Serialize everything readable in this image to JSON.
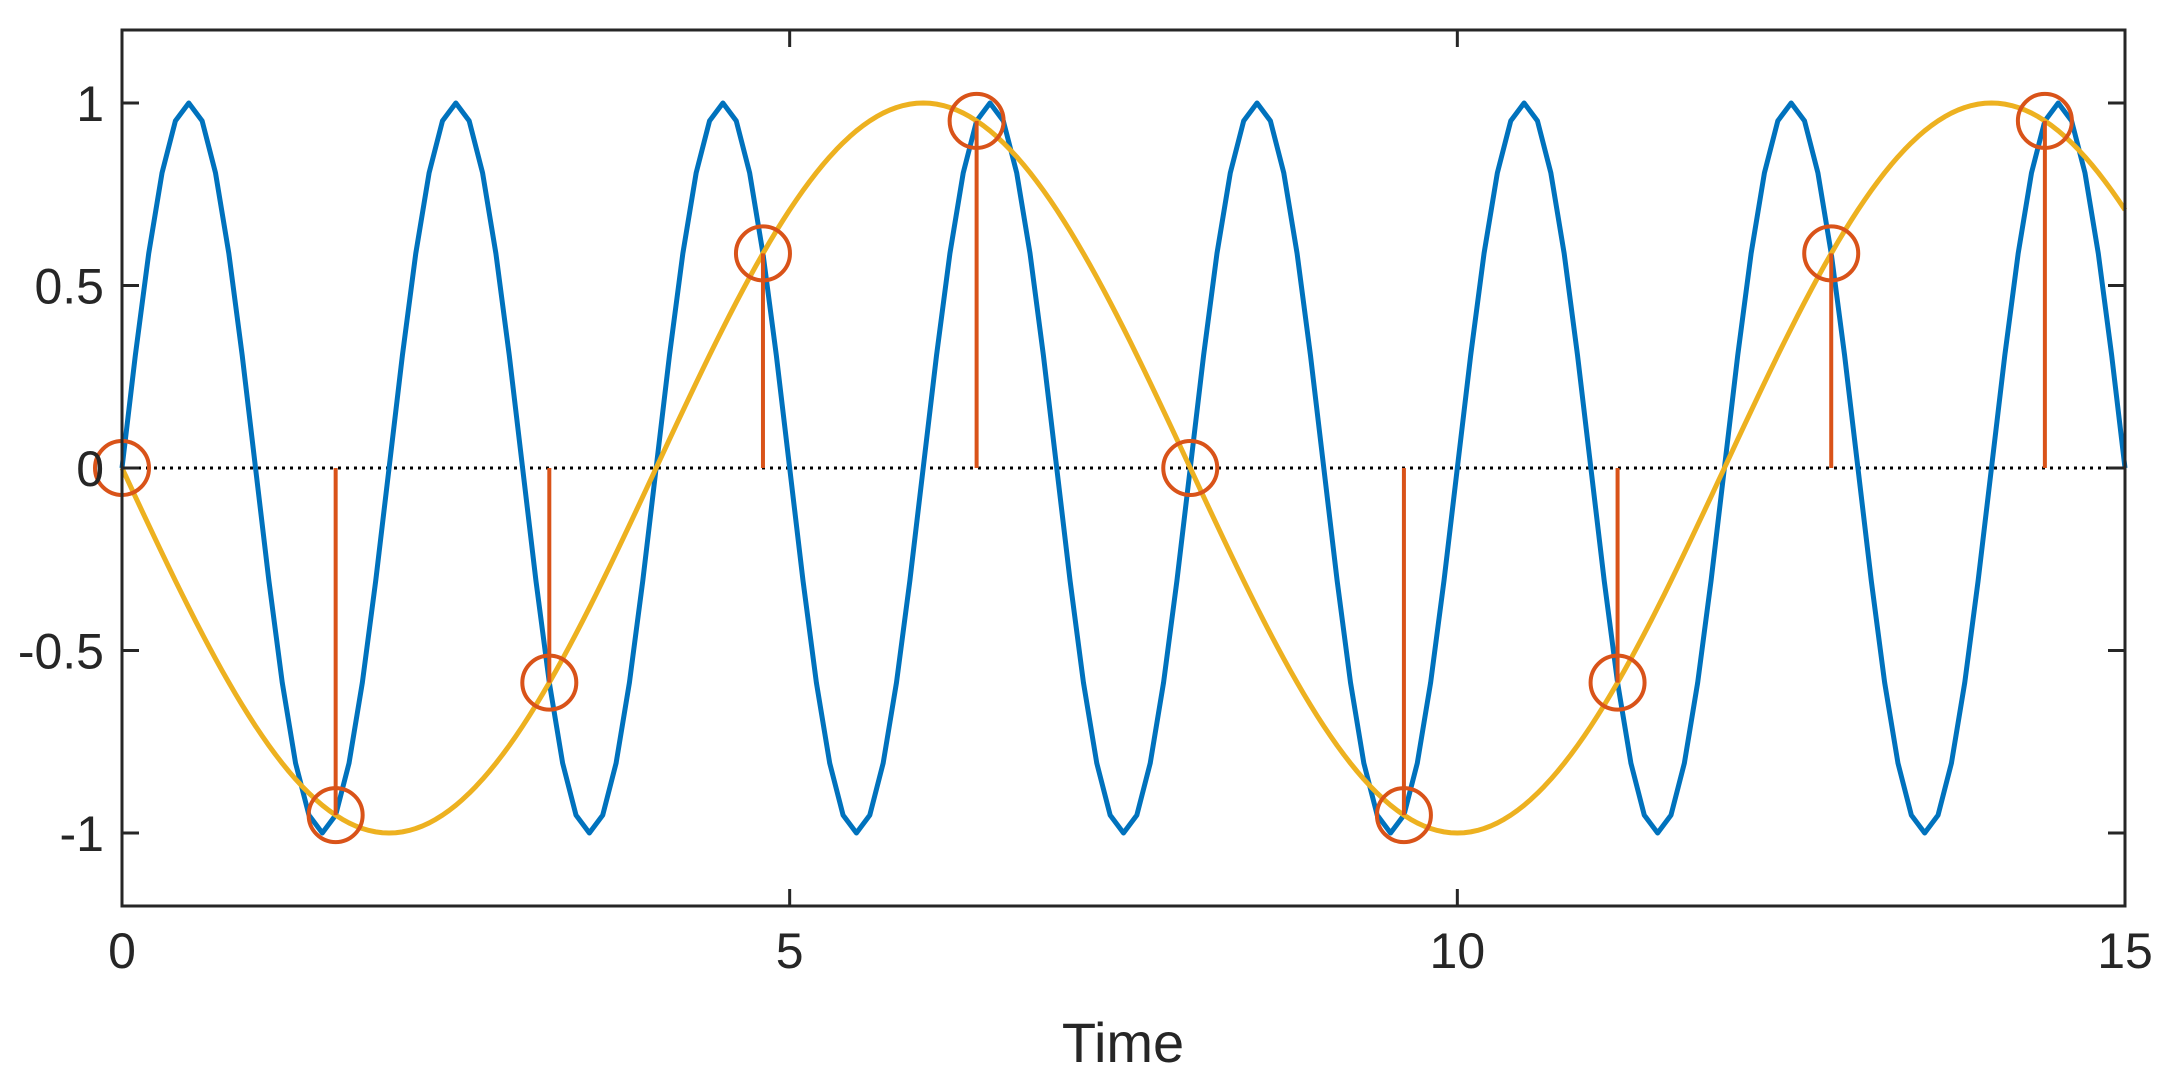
{
  "chart_data": {
    "type": "line",
    "title": "",
    "xlabel": "Time",
    "ylabel": "",
    "xlim": [
      0,
      15
    ],
    "ylim": [
      -1.2,
      1.2
    ],
    "xticks": [
      0,
      5,
      10,
      15
    ],
    "xtick_labels": [
      "0",
      "5",
      "10",
      "15"
    ],
    "yticks": [
      -1,
      -0.5,
      0,
      0.5,
      1
    ],
    "ytick_labels": [
      "-1",
      "-0.5",
      "0",
      "0.5",
      "1"
    ],
    "grid": false,
    "series": [
      {
        "kind": "line",
        "color": "#0072BD",
        "x_start": 0,
        "x_end": 15,
        "x_step": 0.1,
        "function": "sin(2*pi*0.5*t)",
        "frequency": 0.5
      },
      {
        "kind": "line",
        "color": "#EDB120",
        "x_start": 0,
        "x_end": 15,
        "x_step": 0.05,
        "function": "-sin(2*pi*0.125*t)",
        "frequency": 0.125
      },
      {
        "kind": "stem",
        "color": "#D95319",
        "marker": "circle",
        "x": [
          0,
          1.6,
          3.2,
          4.8,
          6.4,
          8.0,
          9.6,
          11.2,
          12.8,
          14.4
        ],
        "y": [
          0,
          -0.951,
          -0.588,
          0.588,
          0.951,
          0,
          -0.951,
          -0.588,
          0.588,
          0.951
        ]
      },
      {
        "kind": "baseline",
        "color": "#000000",
        "style": "dotted",
        "y": 0
      }
    ]
  }
}
